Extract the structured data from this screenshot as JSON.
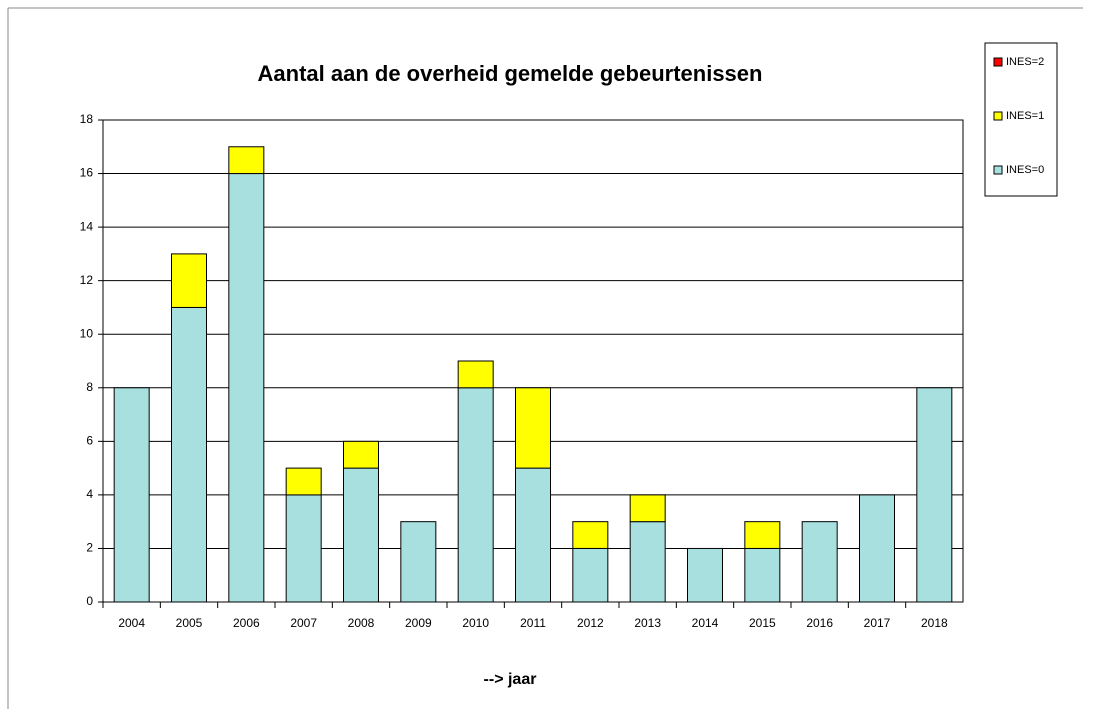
{
  "chart_data": {
    "type": "bar",
    "stacked": true,
    "title": "Aantal aan de overheid gemelde gebeurtenissen",
    "x_label": "--> jaar",
    "categories": [
      "2004",
      "2005",
      "2006",
      "2007",
      "2008",
      "2009",
      "2010",
      "2011",
      "2012",
      "2013",
      "2014",
      "2015",
      "2016",
      "2017",
      "2018"
    ],
    "series": [
      {
        "name": "INES=0",
        "color": "#a8e0e0",
        "values": [
          8,
          11,
          16,
          4,
          5,
          3,
          8,
          5,
          2,
          3,
          2,
          2,
          3,
          4,
          8
        ]
      },
      {
        "name": "INES=1",
        "color": "#ffff00",
        "values": [
          0,
          2,
          1,
          1,
          1,
          0,
          1,
          3,
          1,
          1,
          0,
          1,
          0,
          0,
          0
        ]
      },
      {
        "name": "INES=2",
        "color": "#ff0000",
        "values": [
          0,
          0,
          0,
          0,
          0,
          0,
          0,
          0,
          0,
          0,
          0,
          0,
          0,
          0,
          0
        ]
      }
    ],
    "ylim": [
      0,
      18
    ],
    "yticks": [
      0,
      2,
      4,
      6,
      8,
      10,
      12,
      14,
      16,
      18
    ],
    "grid": true,
    "legend": "right"
  }
}
